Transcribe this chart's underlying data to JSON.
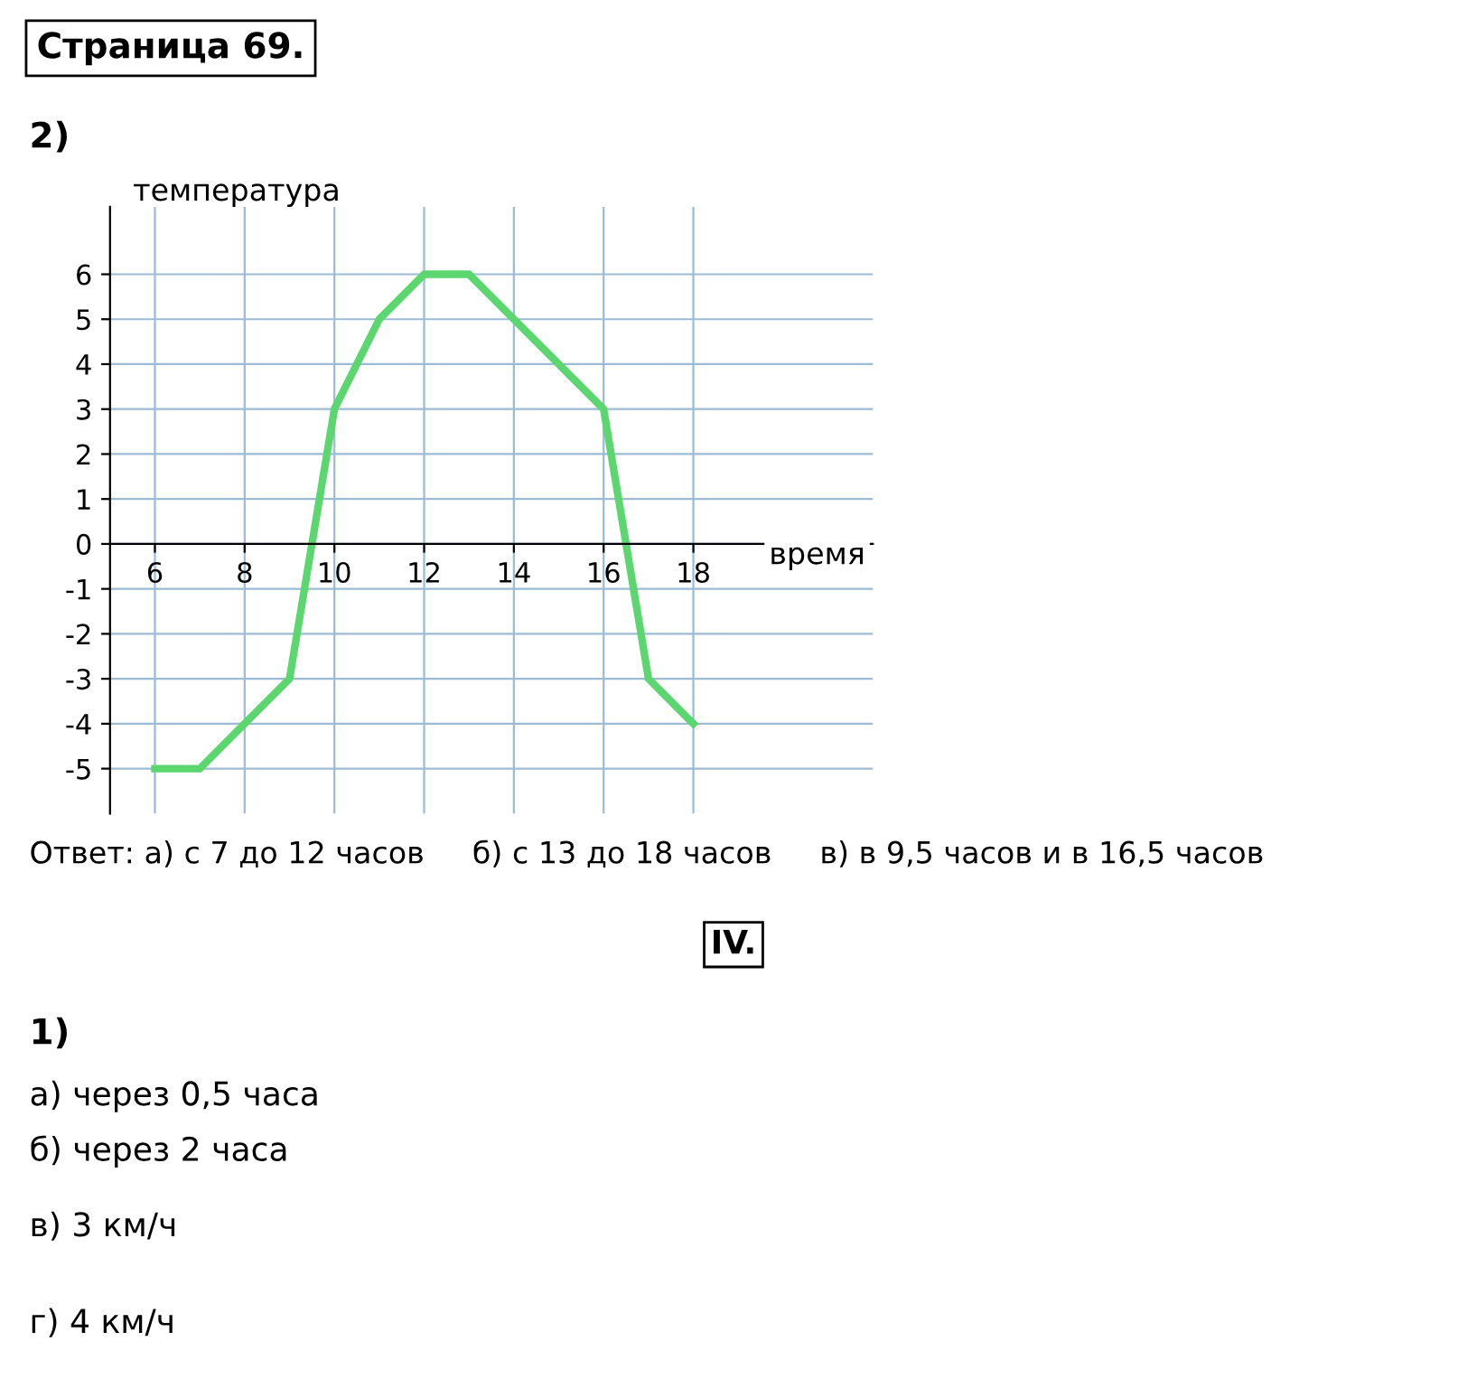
{
  "chart_data": {
    "type": "line",
    "title": "Страница 69.",
    "subtitle": "2)",
    "xlabel": "время",
    "ylabel": "температура",
    "x": [
      6,
      7,
      9,
      10,
      11,
      12,
      13,
      16,
      17,
      18
    ],
    "series": [
      {
        "color": "#5cd66e",
        "values": [
          -5,
          -5,
          -3,
          3,
          5,
          6,
          6,
          3,
          -3,
          -4
        ]
      }
    ],
    "xlim": [
      5,
      22
    ],
    "ylim": [
      -6,
      7.5
    ],
    "xticks": [
      6,
      8,
      10,
      12,
      14,
      16,
      18
    ],
    "yticks": [
      -5,
      -4,
      -3,
      -2,
      -1,
      0,
      1,
      2,
      3,
      4,
      5,
      6
    ],
    "grid": true,
    "marker": "none",
    "line_style": "solid",
    "annotations": [
      "Ответ: а) с 7 до 12 часов     б) с 13 до 18 часов     в) в 9,5 часов и в 16,5 часов",
      "IV.",
      "1)",
      "а) через 0,5 часа",
      "б) через 2 часа",
      "в) 3 км/ч",
      "г) 4 км/ч"
    ]
  }
}
